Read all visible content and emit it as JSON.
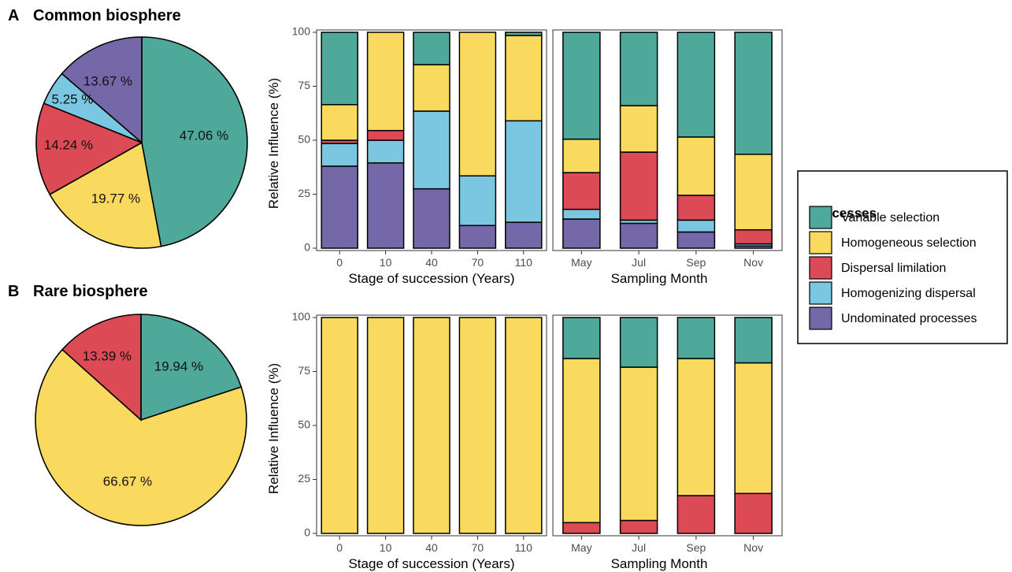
{
  "colors": {
    "variable_selection": "#4ea99b",
    "homogeneous_selection": "#f9da5e",
    "dispersal_limitation": "#dc4b55",
    "homogenizing_dispersal": "#7ac7e2",
    "undominated_processes": "#7468a8"
  },
  "legend": {
    "title": "Processes",
    "items": [
      {
        "key": "variable_selection",
        "label": "Variable selection"
      },
      {
        "key": "homogeneous_selection",
        "label": "Homogeneous selection"
      },
      {
        "key": "dispersal_limitation",
        "label": "Dispersal limilation"
      },
      {
        "key": "homogenizing_dispersal",
        "label": "Homogenizing dispersal"
      },
      {
        "key": "undominated_processes",
        "label": "Undominated processes"
      }
    ]
  },
  "panels": [
    {
      "letter": "A",
      "title": "Common biosphere"
    },
    {
      "letter": "B",
      "title": "Rare biosphere"
    }
  ],
  "chart_data": [
    {
      "type": "pie",
      "panel": "A",
      "slices": [
        {
          "key": "variable_selection",
          "value": 47.06,
          "label": "47.06 %"
        },
        {
          "key": "homogeneous_selection",
          "value": 19.77,
          "label": "19.77 %"
        },
        {
          "key": "dispersal_limitation",
          "value": 14.24,
          "label": "14.24 %"
        },
        {
          "key": "homogenizing_dispersal",
          "value": 5.25,
          "label": "5.25 %"
        },
        {
          "key": "undominated_processes",
          "value": 13.67,
          "label": "13.67 %"
        }
      ]
    },
    {
      "type": "bar",
      "stacked": true,
      "panel": "A",
      "xlabel": "Stage of succession (Years)",
      "ylabel": "Relative Influence (%)",
      "ylim": [
        0,
        100
      ],
      "yticks": [
        0,
        25,
        50,
        75,
        100
      ],
      "categories": [
        "0",
        "10",
        "40",
        "70",
        "110"
      ],
      "series": [
        {
          "key": "undominated_processes",
          "values": [
            38,
            39.5,
            27.5,
            10.5,
            12
          ]
        },
        {
          "key": "homogenizing_dispersal",
          "values": [
            10.5,
            10.5,
            36,
            23,
            47
          ]
        },
        {
          "key": "dispersal_limitation",
          "values": [
            1.5,
            4.5,
            0,
            0,
            0
          ]
        },
        {
          "key": "homogeneous_selection",
          "values": [
            16.5,
            45.5,
            21.5,
            66.5,
            39.5
          ]
        },
        {
          "key": "variable_selection",
          "values": [
            33.5,
            0,
            15,
            0,
            1.5
          ]
        }
      ]
    },
    {
      "type": "bar",
      "stacked": true,
      "panel": "A",
      "xlabel": "Sampling Month",
      "ylim": [
        0,
        100
      ],
      "categories": [
        "May",
        "Jul",
        "Sep",
        "Nov"
      ],
      "series": [
        {
          "key": "undominated_processes",
          "values": [
            13.5,
            11.5,
            7.5,
            1
          ]
        },
        {
          "key": "homogenizing_dispersal",
          "values": [
            4.5,
            1.5,
            5.5,
            1
          ]
        },
        {
          "key": "dispersal_limitation",
          "values": [
            17,
            31.5,
            11.5,
            6.5
          ]
        },
        {
          "key": "homogeneous_selection",
          "values": [
            15.5,
            21.5,
            27,
            35
          ]
        },
        {
          "key": "variable_selection",
          "values": [
            49.5,
            34,
            48.5,
            56.5
          ]
        }
      ]
    },
    {
      "type": "pie",
      "panel": "B",
      "slices": [
        {
          "key": "variable_selection",
          "value": 19.94,
          "label": "19.94 %"
        },
        {
          "key": "homogeneous_selection",
          "value": 66.67,
          "label": "66.67 %"
        },
        {
          "key": "dispersal_limitation",
          "value": 13.39,
          "label": "13.39 %"
        }
      ]
    },
    {
      "type": "bar",
      "stacked": true,
      "panel": "B",
      "xlabel": "Stage of succession (Years)",
      "ylabel": "Relative Influence (%)",
      "ylim": [
        0,
        100
      ],
      "yticks": [
        0,
        25,
        50,
        75,
        100
      ],
      "categories": [
        "0",
        "10",
        "40",
        "70",
        "110"
      ],
      "series": [
        {
          "key": "homogeneous_selection",
          "values": [
            100,
            100,
            100,
            100,
            100
          ]
        }
      ]
    },
    {
      "type": "bar",
      "stacked": true,
      "panel": "B",
      "xlabel": "Sampling Month",
      "ylim": [
        0,
        100
      ],
      "categories": [
        "May",
        "Jul",
        "Sep",
        "Nov"
      ],
      "series": [
        {
          "key": "dispersal_limitation",
          "values": [
            5,
            6,
            17.5,
            18.5
          ]
        },
        {
          "key": "homogeneous_selection",
          "values": [
            76,
            71,
            63.5,
            60.5
          ]
        },
        {
          "key": "variable_selection",
          "values": [
            19,
            23,
            19,
            21
          ]
        }
      ]
    }
  ]
}
